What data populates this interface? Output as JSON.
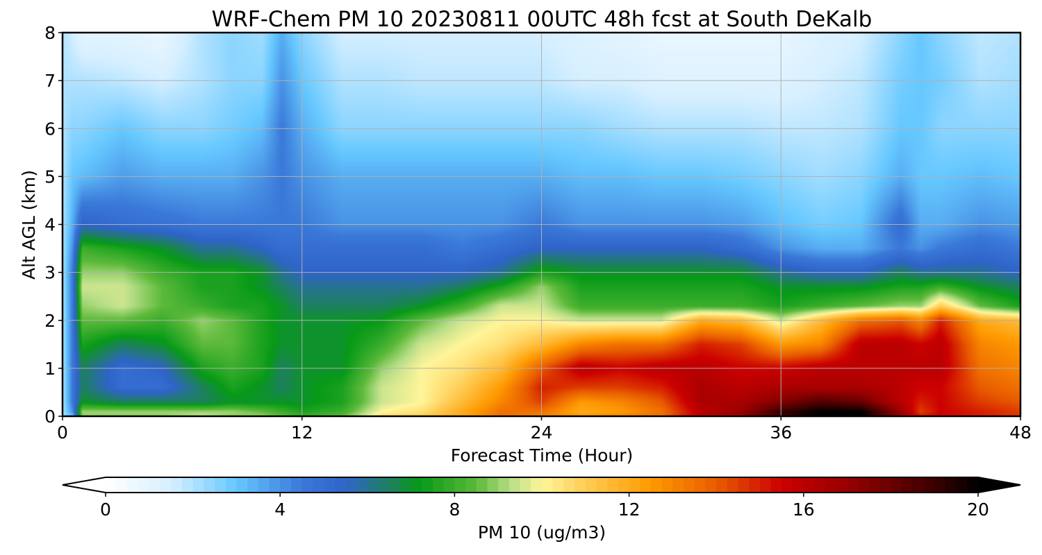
{
  "chart_data": {
    "type": "heatmap",
    "title": "WRF-Chem PM 10  20230811 00UTC 48h fcst at South DeKalb",
    "xlabel": "Forecast Time (Hour)",
    "ylabel": "Alt AGL (km)",
    "xlim": [
      0,
      48
    ],
    "ylim": [
      0,
      8
    ],
    "x_ticks": [
      "0",
      "12",
      "24",
      "36",
      "48"
    ],
    "y_ticks": [
      "0",
      "1",
      "2",
      "3",
      "4",
      "5",
      "6",
      "7",
      "8"
    ],
    "grid": true,
    "colorbar": {
      "label": "PM 10  (ug/m3)",
      "range": [
        0,
        20
      ],
      "ticks": [
        "0",
        "4",
        "8",
        "12",
        "16",
        "20"
      ],
      "extend": "both",
      "stops": [
        {
          "v": 0,
          "c": "#ffffff"
        },
        {
          "v": 1.5,
          "c": "#d6efff"
        },
        {
          "v": 3,
          "c": "#66c8ff"
        },
        {
          "v": 4.5,
          "c": "#3a78d8"
        },
        {
          "v": 5.5,
          "c": "#2f64c8"
        },
        {
          "v": 6.5,
          "c": "#1e8060"
        },
        {
          "v": 7.2,
          "c": "#079a17"
        },
        {
          "v": 8.5,
          "c": "#5cb93a"
        },
        {
          "v": 9.3,
          "c": "#b9df88"
        },
        {
          "v": 10,
          "c": "#fff59a"
        },
        {
          "v": 11,
          "c": "#ffcc55"
        },
        {
          "v": 12.5,
          "c": "#ff9a00"
        },
        {
          "v": 14,
          "c": "#e85c00"
        },
        {
          "v": 15.5,
          "c": "#cc0000"
        },
        {
          "v": 17,
          "c": "#980000"
        },
        {
          "v": 19,
          "c": "#3a0000"
        },
        {
          "v": 20,
          "c": "#000000"
        }
      ]
    },
    "heights_km": [
      0,
      0.1,
      0.3,
      0.6,
      1,
      1.5,
      2,
      2.3,
      2.7,
      3,
      3.5,
      4,
      5,
      6,
      7,
      8
    ],
    "hours": [
      0,
      0.5,
      1,
      3,
      5,
      7,
      8.5,
      10,
      11,
      12,
      14,
      16,
      18,
      20,
      22,
      24,
      26,
      28,
      30,
      32,
      34,
      36,
      38,
      40,
      42,
      43,
      44,
      46,
      48
    ],
    "values": [
      [
        2,
        2,
        2,
        2,
        2,
        2,
        2,
        2,
        2,
        2,
        2,
        2,
        2,
        2,
        2,
        2
      ],
      [
        3,
        4,
        4.5,
        4.5,
        4.5,
        4.5,
        4.5,
        4.5,
        4.5,
        4.5,
        4,
        3.5,
        3,
        2.5,
        2,
        1.5
      ],
      [
        9,
        9,
        7,
        6.5,
        6.5,
        7.5,
        8.5,
        9,
        9.5,
        9,
        8,
        5.5,
        3.2,
        2.5,
        2,
        1
      ],
      [
        9,
        9,
        6.5,
        5,
        5,
        6.5,
        8.5,
        9.5,
        9.5,
        9,
        7.5,
        5,
        3.8,
        3,
        1.8,
        1
      ],
      [
        9,
        9,
        6.5,
        5,
        5.5,
        7,
        8,
        8.5,
        8.5,
        8,
        7,
        4.8,
        3.5,
        2.5,
        1.5,
        0.8
      ],
      [
        9.5,
        9,
        6.5,
        6.5,
        7.5,
        8.5,
        9,
        8,
        7.5,
        7.5,
        6,
        4.5,
        3.5,
        2.5,
        2,
        2
      ],
      [
        9,
        9,
        7,
        7.5,
        8,
        8.5,
        8.5,
        7.5,
        7.5,
        7.5,
        6,
        4.5,
        3.5,
        2.8,
        2.5,
        2.5
      ],
      [
        9,
        8.5,
        7,
        7,
        7.5,
        7.5,
        7.5,
        7.5,
        7,
        7,
        5.5,
        4.5,
        4,
        3.2,
        2.5,
        2.2
      ],
      [
        8.5,
        8,
        7,
        6.5,
        6.5,
        7,
        7,
        7,
        6.5,
        6,
        5,
        4.5,
        4.5,
        4.5,
        4,
        3.5
      ],
      [
        8,
        7.5,
        7,
        7,
        7,
        7,
        7,
        6.5,
        6,
        5.5,
        5,
        4.5,
        4,
        3.5,
        3,
        2.5
      ],
      [
        8.5,
        8,
        7.5,
        7.5,
        7,
        7,
        7,
        6.5,
        6,
        5.5,
        5,
        4,
        3.5,
        2.5,
        2,
        1.5
      ],
      [
        10.5,
        10,
        9.5,
        9.5,
        9,
        8,
        7.2,
        6.5,
        6,
        5.5,
        5,
        4,
        3.5,
        2.5,
        2,
        1.5
      ],
      [
        11,
        10.5,
        10,
        10,
        10,
        9.5,
        8.5,
        7,
        6,
        5.5,
        5,
        4,
        3.5,
        2.5,
        1.8,
        1.5
      ],
      [
        12,
        12,
        11.5,
        11,
        10.5,
        10,
        9.5,
        8,
        6.5,
        5.5,
        4.5,
        4,
        3.5,
        2.5,
        1.8,
        1.5
      ],
      [
        13.5,
        13.5,
        13,
        12.5,
        11.5,
        10.5,
        10,
        9.5,
        7.5,
        6,
        5,
        4,
        3.5,
        2.5,
        1.8,
        1.5
      ],
      [
        13,
        13.5,
        14.5,
        15,
        14,
        11.5,
        10,
        9.5,
        9,
        7.5,
        5.5,
        4.5,
        3.5,
        2.5,
        1.8,
        1.5
      ],
      [
        12.5,
        12,
        12.5,
        14.5,
        16,
        13,
        9.5,
        8,
        7.5,
        7,
        5.5,
        4,
        3.2,
        2.5,
        1.5,
        1.2
      ],
      [
        13,
        12.5,
        13,
        14.5,
        15.5,
        13.5,
        9.5,
        8,
        7.5,
        7,
        5.5,
        4,
        3.2,
        2.2,
        1.5,
        1
      ],
      [
        13.5,
        13.5,
        14,
        15,
        16,
        13.5,
        9.5,
        8,
        7.5,
        7,
        5.5,
        4,
        3,
        2,
        1.2,
        0.8
      ],
      [
        16,
        16,
        16.5,
        16.5,
        16,
        15,
        12,
        8,
        7.5,
        7,
        5.5,
        4,
        3,
        2,
        1.2,
        0.8
      ],
      [
        17,
        17,
        16.5,
        16,
        15.5,
        14.5,
        11.5,
        8,
        7.5,
        7,
        5,
        3.8,
        2.8,
        2,
        1.2,
        0.8
      ],
      [
        19,
        19,
        17.5,
        16.5,
        15.5,
        12.5,
        9.5,
        7.5,
        7,
        6,
        4,
        3.2,
        2.5,
        1.8,
        1.2,
        0.8
      ],
      [
        20,
        20,
        18.5,
        16.5,
        16,
        13,
        11.5,
        8,
        7,
        5.5,
        3.5,
        2.8,
        2.2,
        1.8,
        1.5,
        1.2
      ],
      [
        20,
        20,
        18,
        16.5,
        16,
        16,
        13.5,
        8.5,
        7,
        5.5,
        3.5,
        3,
        2.5,
        2,
        1.8,
        1.5
      ],
      [
        17,
        17,
        16,
        16,
        16,
        16,
        14,
        9,
        7.5,
        6.5,
        4.5,
        5,
        3.5,
        3,
        2.8,
        2.5
      ],
      [
        15,
        14.5,
        15,
        15.5,
        16,
        15.5,
        13,
        9,
        7.5,
        6,
        4,
        3.5,
        3,
        3,
        3,
        3
      ],
      [
        15.5,
        15.5,
        15.5,
        15.5,
        16,
        16,
        15,
        11,
        8,
        6,
        4.5,
        3.5,
        3,
        2.5,
        2.8,
        2.5
      ],
      [
        15,
        15,
        14.5,
        14,
        13.5,
        13,
        12,
        8.5,
        7,
        6,
        5,
        4,
        3.2,
        2.5,
        2,
        1.8
      ],
      [
        14.5,
        14.5,
        14,
        13.5,
        13,
        12.5,
        11.5,
        7.5,
        6.5,
        5.5,
        4.5,
        3.8,
        3,
        2.5,
        2.2,
        2
      ]
    ]
  }
}
